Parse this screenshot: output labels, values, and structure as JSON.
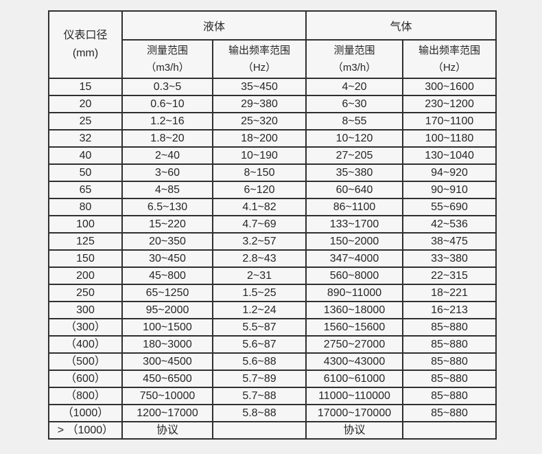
{
  "page": {
    "background_color": "#f0f0f0",
    "cell_background": "#f6f6f6",
    "border_color": "#2f2f2f",
    "text_color": "#262626"
  },
  "table": {
    "caliber_header": {
      "line1": "仪表口径",
      "line2": "(mm)"
    },
    "groups": {
      "liquid": "液体",
      "gas": "气体"
    },
    "subheaders": {
      "measure_label": "测量范围",
      "measure_unit": "（m3/h）",
      "freq_label": "输出频率范围",
      "freq_unit": "（Hz）"
    },
    "rows": [
      [
        "15",
        "0.3~5",
        "35~450",
        "4~20",
        "300~1600"
      ],
      [
        "20",
        "0.6~10",
        "29~380",
        "6~30",
        "230~1200"
      ],
      [
        "25",
        "1.2~16",
        "25~320",
        "8~55",
        "170~1100"
      ],
      [
        "32",
        "1.8~20",
        "18~200",
        "10~120",
        "100~1180"
      ],
      [
        "40",
        "2~40",
        "10~190",
        "27~205",
        "130~1040"
      ],
      [
        "50",
        "3~60",
        "8~150",
        "35~380",
        "94~920"
      ],
      [
        "65",
        "4~85",
        "6~120",
        "60~640",
        "90~910"
      ],
      [
        "80",
        "6.5~130",
        "4.1~82",
        "86~1100",
        "55~690"
      ],
      [
        "100",
        "15~220",
        "4.7~69",
        "133~1700",
        "42~536"
      ],
      [
        "125",
        "20~350",
        "3.2~57",
        "150~2000",
        "38~475"
      ],
      [
        "150",
        "30~450",
        "2.8~43",
        "347~4000",
        "33~380"
      ],
      [
        "200",
        "45~800",
        "2~31",
        "560~8000",
        "22~315"
      ],
      [
        "250",
        "65~1250",
        "1.5~25",
        "890~11000",
        "18~221"
      ],
      [
        "300",
        "95~2000",
        "1.2~24",
        "1360~18000",
        "16~213"
      ],
      [
        "（300）",
        "100~1500",
        "5.5~87",
        "1560~15600",
        "85~880"
      ],
      [
        "（400）",
        "180~3000",
        "5.6~87",
        "2750~27000",
        "85~880"
      ],
      [
        "（500）",
        "300~4500",
        "5.6~88",
        "4300~43000",
        "85~880"
      ],
      [
        "（600）",
        "450~6500",
        "5.7~89",
        "6100~61000",
        "85~880"
      ],
      [
        "（800）",
        "750~10000",
        "5.7~88",
        "11000~110000",
        "85~880"
      ],
      [
        "（1000）",
        "1200~17000",
        "5.8~88",
        "17000~170000",
        "85~880"
      ],
      [
        "> （1000）",
        "协议",
        "",
        "协议",
        ""
      ]
    ]
  }
}
